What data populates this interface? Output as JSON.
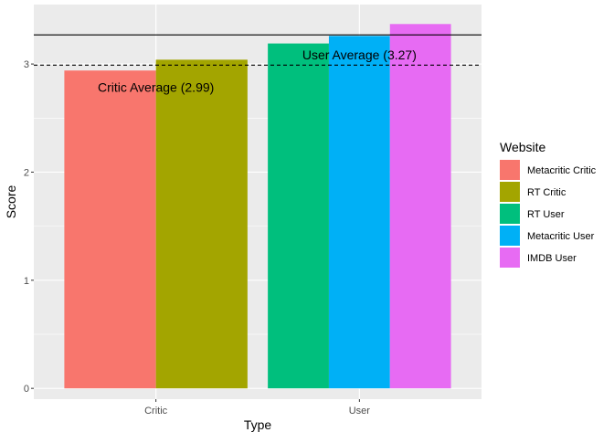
{
  "chart_data": {
    "type": "bar",
    "xlabel": "Type",
    "ylabel": "Score",
    "categories": [
      "Critic",
      "User"
    ],
    "ylim": [
      -0.1,
      3.55
    ],
    "yticks": [
      0,
      1,
      2,
      3
    ],
    "grid": true,
    "legend_position": "right",
    "legend_title": "Website",
    "series": [
      {
        "name": "Metacritic Critic",
        "category": "Critic",
        "value": 2.94,
        "color": "#F8766D"
      },
      {
        "name": "RT Critic",
        "category": "Critic",
        "value": 3.04,
        "color": "#A3A500"
      },
      {
        "name": "RT User",
        "category": "User",
        "value": 3.19,
        "color": "#00BF7D"
      },
      {
        "name": "Metacritic User",
        "category": "User",
        "value": 3.26,
        "color": "#00B0F6"
      },
      {
        "name": "IMDB User",
        "category": "User",
        "value": 3.37,
        "color": "#E76BF3"
      }
    ],
    "reference_lines": [
      {
        "value": 3.27,
        "style": "solid",
        "label": "User Average (3.27)",
        "label_category": "User"
      },
      {
        "value": 2.99,
        "style": "dashed",
        "label": "Critic Average (2.99)",
        "label_category": "Critic"
      }
    ]
  }
}
